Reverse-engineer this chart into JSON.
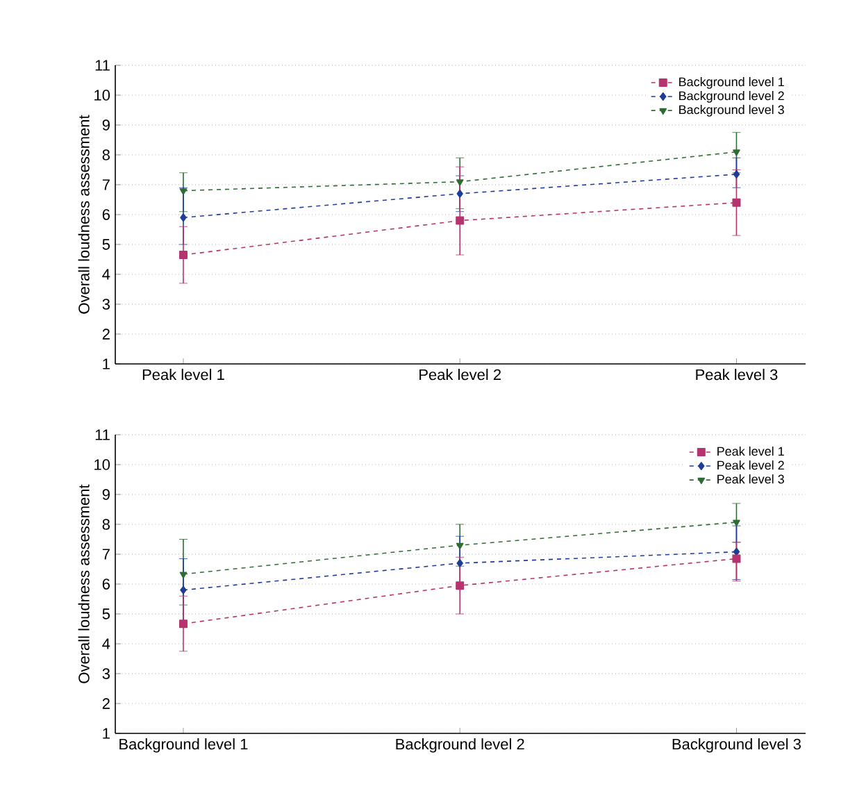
{
  "chart_data": [
    {
      "type": "line",
      "ylabel": "Overall loudness assessment",
      "categories": [
        "Peak level 1",
        "Peak level 2",
        "Peak level 3"
      ],
      "ylim": [
        1,
        11
      ],
      "yticks": [
        1,
        2,
        3,
        4,
        5,
        6,
        7,
        8,
        9,
        10,
        11
      ],
      "grid": "y",
      "legend": "top right",
      "line_style": "dashed",
      "series": [
        {
          "name": "Background level 1",
          "color": "#b5336e",
          "marker": "square",
          "values": [
            4.65,
            5.8,
            6.4
          ],
          "errors": [
            [
              3.7,
              5.6
            ],
            [
              4.65,
              7.6
            ],
            [
              5.3,
              7.5
            ]
          ]
        },
        {
          "name": "Background level 2",
          "color": "#1f3c99",
          "marker": "diamond",
          "values": [
            5.9,
            6.7,
            7.35
          ],
          "errors": [
            [
              5.0,
              6.9
            ],
            [
              6.1,
              7.3
            ],
            [
              6.9,
              7.9
            ]
          ]
        },
        {
          "name": "Background level 3",
          "color": "#2e6b35",
          "marker": "triangle",
          "values": [
            6.8,
            7.1,
            8.1
          ],
          "errors": [
            [
              6.1,
              7.4
            ],
            [
              6.2,
              7.9
            ],
            [
              7.4,
              8.75
            ]
          ]
        }
      ]
    },
    {
      "type": "line",
      "ylabel": "Overall loudness assessment",
      "categories": [
        "Background level 1",
        "Background level 2",
        "Background level 3"
      ],
      "ylim": [
        1,
        11
      ],
      "yticks": [
        1,
        2,
        3,
        4,
        5,
        6,
        7,
        8,
        9,
        10,
        11
      ],
      "grid": "y",
      "legend": "top right",
      "line_style": "dashed",
      "series": [
        {
          "name": "Peak level 1",
          "color": "#b5336e",
          "marker": "square",
          "values": [
            4.67,
            5.95,
            6.85
          ],
          "errors": [
            [
              3.75,
              5.6
            ],
            [
              5.0,
              6.9
            ],
            [
              6.1,
              7.4
            ]
          ]
        },
        {
          "name": "Peak level 2",
          "color": "#1f3c99",
          "marker": "diamond",
          "values": [
            5.8,
            6.7,
            7.08
          ],
          "errors": [
            [
              4.67,
              6.85
            ],
            [
              5.85,
              7.6
            ],
            [
              6.15,
              7.95
            ]
          ]
        },
        {
          "name": "Peak level 3",
          "color": "#2e6b35",
          "marker": "triangle",
          "values": [
            6.33,
            7.3,
            8.07
          ],
          "errors": [
            [
              5.3,
              7.5
            ],
            [
              6.6,
              8.0
            ],
            [
              7.4,
              8.7
            ]
          ]
        }
      ]
    }
  ]
}
